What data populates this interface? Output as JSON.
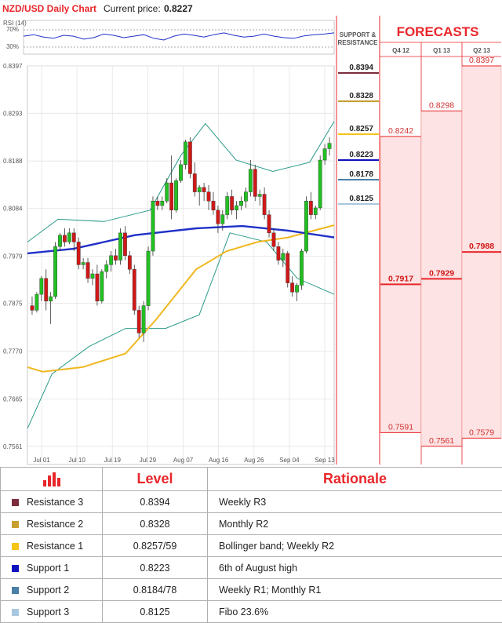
{
  "header": {
    "title": "NZD/USD Daily Chart",
    "price_label": "Current price:",
    "price_value": "0.8227"
  },
  "rsi": {
    "label": "RSI (14)",
    "upper": "70%",
    "lower": "30%"
  },
  "sr_panel": {
    "title_line1": "SUPPORT &",
    "title_line2": "RESISTANCE"
  },
  "forecasts": {
    "title": "FORECASTS",
    "periods": [
      "Q4 12",
      "Q1 13",
      "Q2 13"
    ]
  },
  "colors": {
    "resistance_3": "#7b2d3c",
    "resistance_2": "#c8a030",
    "resistance_1": "#f5c518",
    "support_1": "#1010c0",
    "support_2": "#4a7fa8",
    "support_3": "#a8c8e0",
    "bull": "#22c022",
    "bear": "#d01818",
    "ma_long": "#2030c8",
    "ma_mid": "#f0b820",
    "bollinger": "#2a9a8a",
    "forecast": "#e8262a"
  },
  "chart_data": {
    "type": "candlestick",
    "title": "NZD/USD Daily Chart",
    "ylim": [
      0.7521,
      0.8397
    ],
    "y_ticks": [
      "0.8397",
      "0.8293",
      "0.8188",
      "0.8084",
      "0.7979",
      "0.7875",
      "0.7770",
      "0.7665",
      "0.7561"
    ],
    "x_ticks": [
      "Jul 01",
      "Jul 10",
      "Jul 19",
      "Jul 29",
      "Aug 07",
      "Aug 16",
      "Aug 26",
      "Sep 04",
      "Sep 13"
    ],
    "candles": [
      [
        0.787,
        0.789,
        0.785,
        0.786
      ],
      [
        0.786,
        0.79,
        0.7855,
        0.7895
      ],
      [
        0.7895,
        0.7935,
        0.788,
        0.793
      ],
      [
        0.793,
        0.795,
        0.786,
        0.788
      ],
      [
        0.788,
        0.79,
        0.783,
        0.789
      ],
      [
        0.789,
        0.801,
        0.7885,
        0.8
      ],
      [
        0.8,
        0.803,
        0.799,
        0.8025
      ],
      [
        0.8025,
        0.804,
        0.8,
        0.801
      ],
      [
        0.801,
        0.804,
        0.8005,
        0.803
      ],
      [
        0.803,
        0.804,
        0.799,
        0.801
      ],
      [
        0.801,
        0.802,
        0.795,
        0.796
      ],
      [
        0.796,
        0.7975,
        0.795,
        0.7965
      ],
      [
        0.7965,
        0.7975,
        0.792,
        0.793
      ],
      [
        0.793,
        0.795,
        0.7915,
        0.794
      ],
      [
        0.794,
        0.796,
        0.787,
        0.788
      ],
      [
        0.788,
        0.795,
        0.7875,
        0.7945
      ],
      [
        0.7945,
        0.797,
        0.793,
        0.796
      ],
      [
        0.796,
        0.799,
        0.7945,
        0.798
      ],
      [
        0.798,
        0.7995,
        0.796,
        0.797
      ],
      [
        0.797,
        0.804,
        0.796,
        0.803
      ],
      [
        0.803,
        0.8045,
        0.797,
        0.798
      ],
      [
        0.798,
        0.799,
        0.794,
        0.795
      ],
      [
        0.795,
        0.796,
        0.785,
        0.786
      ],
      [
        0.786,
        0.787,
        0.78,
        0.781
      ],
      [
        0.781,
        0.788,
        0.779,
        0.787
      ],
      [
        0.787,
        0.8,
        0.786,
        0.799
      ],
      [
        0.799,
        0.811,
        0.798,
        0.81
      ],
      [
        0.81,
        0.811,
        0.808,
        0.809
      ],
      [
        0.809,
        0.811,
        0.808,
        0.81
      ],
      [
        0.81,
        0.815,
        0.8095,
        0.814
      ],
      [
        0.814,
        0.82,
        0.806,
        0.808
      ],
      [
        0.808,
        0.815,
        0.8075,
        0.8145
      ],
      [
        0.8145,
        0.819,
        0.814,
        0.818
      ],
      [
        0.818,
        0.8235,
        0.817,
        0.823
      ],
      [
        0.823,
        0.824,
        0.815,
        0.816
      ],
      [
        0.816,
        0.8185,
        0.811,
        0.812
      ],
      [
        0.812,
        0.8135,
        0.809,
        0.813
      ],
      [
        0.813,
        0.814,
        0.81,
        0.812
      ],
      [
        0.812,
        0.8135,
        0.808,
        0.81
      ],
      [
        0.81,
        0.812,
        0.807,
        0.808
      ],
      [
        0.808,
        0.809,
        0.803,
        0.805
      ],
      [
        0.805,
        0.808,
        0.8035,
        0.807
      ],
      [
        0.807,
        0.812,
        0.806,
        0.811
      ],
      [
        0.811,
        0.8125,
        0.807,
        0.808
      ],
      [
        0.808,
        0.81,
        0.806,
        0.809
      ],
      [
        0.809,
        0.811,
        0.808,
        0.81
      ],
      [
        0.81,
        0.813,
        0.8085,
        0.812
      ],
      [
        0.812,
        0.819,
        0.811,
        0.817
      ],
      [
        0.817,
        0.818,
        0.81,
        0.811
      ],
      [
        0.811,
        0.8125,
        0.809,
        0.8115
      ],
      [
        0.8115,
        0.813,
        0.806,
        0.807
      ],
      [
        0.807,
        0.808,
        0.802,
        0.803
      ],
      [
        0.803,
        0.804,
        0.799,
        0.8
      ],
      [
        0.8,
        0.801,
        0.796,
        0.797
      ],
      [
        0.797,
        0.7995,
        0.7955,
        0.7985
      ],
      [
        0.7985,
        0.799,
        0.791,
        0.792
      ],
      [
        0.792,
        0.7935,
        0.789,
        0.79
      ],
      [
        0.79,
        0.792,
        0.788,
        0.7915
      ],
      [
        0.7915,
        0.7995,
        0.7905,
        0.799
      ],
      [
        0.799,
        0.811,
        0.7985,
        0.81
      ],
      [
        0.81,
        0.812,
        0.806,
        0.807
      ],
      [
        0.807,
        0.809,
        0.806,
        0.8085
      ],
      [
        0.8085,
        0.82,
        0.808,
        0.819
      ],
      [
        0.819,
        0.8225,
        0.818,
        0.8215
      ],
      [
        0.8215,
        0.824,
        0.82,
        0.8227
      ]
    ],
    "ma_long": [
      [
        0,
        0.7985
      ],
      [
        0.15,
        0.7995
      ],
      [
        0.35,
        0.8025
      ],
      [
        0.55,
        0.804
      ],
      [
        0.7,
        0.8045
      ],
      [
        0.85,
        0.8035
      ],
      [
        1,
        0.802
      ]
    ],
    "ma_mid": [
      [
        0,
        0.7735
      ],
      [
        0.05,
        0.7725
      ],
      [
        0.18,
        0.7735
      ],
      [
        0.32,
        0.7765
      ],
      [
        0.42,
        0.784
      ],
      [
        0.55,
        0.795
      ],
      [
        0.65,
        0.799
      ],
      [
        0.75,
        0.801
      ],
      [
        0.85,
        0.802
      ],
      [
        1,
        0.8047
      ]
    ],
    "bollinger_upper": [
      [
        0,
        0.801
      ],
      [
        0.1,
        0.806
      ],
      [
        0.25,
        0.8055
      ],
      [
        0.4,
        0.808
      ],
      [
        0.5,
        0.82
      ],
      [
        0.58,
        0.827
      ],
      [
        0.68,
        0.819
      ],
      [
        0.8,
        0.8165
      ],
      [
        0.92,
        0.8185
      ],
      [
        1,
        0.8275
      ]
    ],
    "bollinger_lower": [
      [
        0,
        0.76
      ],
      [
        0.08,
        0.772
      ],
      [
        0.2,
        0.778
      ],
      [
        0.32,
        0.782
      ],
      [
        0.45,
        0.782
      ],
      [
        0.56,
        0.785
      ],
      [
        0.66,
        0.803
      ],
      [
        0.78,
        0.801
      ],
      [
        0.88,
        0.793
      ],
      [
        1,
        0.7895
      ]
    ],
    "levels": [
      {
        "name": "Resistance 3",
        "value": "0.8394",
        "color": "#7b2d3c"
      },
      {
        "name": "Resistance 2",
        "value": "0.8328",
        "color": "#c8a030"
      },
      {
        "name": "Resistance 1",
        "value": "0.8257",
        "color": "#f5c518"
      },
      {
        "name": "Support 1",
        "value": "0.8223",
        "color": "#1010c0"
      },
      {
        "name": "Support 2",
        "value": "0.8178",
        "color": "#4a7fa8"
      },
      {
        "name": "Support 3",
        "value": "0.8125",
        "color": "#a8c8e0"
      }
    ],
    "forecast_columns": [
      {
        "period": "Q4 12",
        "values": [
          "0.8242",
          "0.7917",
          "0.7591"
        ]
      },
      {
        "period": "Q1 13",
        "values": [
          "0.8298",
          "0.7929",
          "0.7561"
        ]
      },
      {
        "period": "Q2 13",
        "values": [
          "0.8397",
          "0.7988",
          "0.7579"
        ]
      }
    ],
    "rsi_series": [
      0.55,
      0.6,
      0.52,
      0.48,
      0.58,
      0.55,
      0.45,
      0.5,
      0.62,
      0.58,
      0.5,
      0.55,
      0.6,
      0.48,
      0.42,
      0.55,
      0.62,
      0.58,
      0.52,
      0.6,
      0.66,
      0.58,
      0.52,
      0.55,
      0.62,
      0.55,
      0.5,
      0.48,
      0.56,
      0.6,
      0.62,
      0.66
    ]
  },
  "table": {
    "headers": {
      "level": "Level",
      "rationale": "Rationale"
    },
    "rows": [
      {
        "name": "Resistance 3",
        "level": "0.8394",
        "rationale": "Weekly R3",
        "color": "#7b2d3c"
      },
      {
        "name": "Resistance 2",
        "level": "0.8328",
        "rationale": "Monthly R2",
        "color": "#c8a030"
      },
      {
        "name": "Resistance 1",
        "level": "0.8257/59",
        "rationale": "Bollinger band; Weekly R2",
        "color": "#f5c518"
      },
      {
        "name": "Support 1",
        "level": "0.8223",
        "rationale": "6th of August high",
        "color": "#1010c0"
      },
      {
        "name": "Support 2",
        "level": "0.8184/78",
        "rationale": "Weekly R1; Monthly R1",
        "color": "#4a7fa8"
      },
      {
        "name": "Support 3",
        "level": "0.8125",
        "rationale": "Fibo 23.6%",
        "color": "#a8c8e0"
      }
    ]
  }
}
